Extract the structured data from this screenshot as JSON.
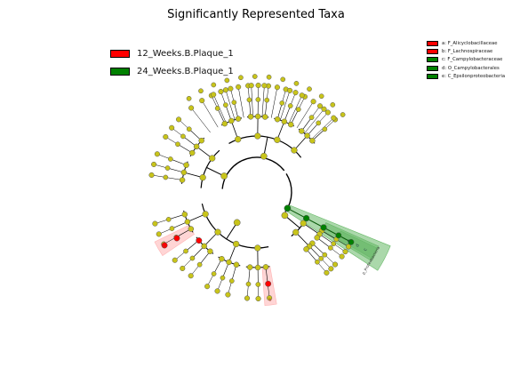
{
  "title": "Significantly Represented Taxa",
  "colors": {
    "class_12wk": "#ff0000",
    "class_24wk": "#008000",
    "node_default": "#c8c41a",
    "highlight_red": "#ffb3b3",
    "highlight_green": "#66b866"
  },
  "class_legend": [
    {
      "label": "12_Weeks.B.Plaque_1",
      "color": "#ff0000"
    },
    {
      "label": "24_Weeks.B.Plaque_1",
      "color": "#008000"
    }
  ],
  "taxa_legend": [
    {
      "label": "a: F_Alicyclobacillaceae",
      "color": "#ff0000"
    },
    {
      "label": "b: F_Lachnospiraceae",
      "color": "#ff0000"
    },
    {
      "label": "c: F_Campylobacteraceae",
      "color": "#008000"
    },
    {
      "label": "d: O_Campylobacterales",
      "color": "#008000"
    },
    {
      "label": "e: C_Epsilonproteobacteria",
      "color": "#008000"
    }
  ],
  "cladogram": {
    "phylum_labels": [
      {
        "text": "p_Proteobacteria"
      }
    ],
    "clade_letters": [
      {
        "letter": "a"
      },
      {
        "letter": "b"
      },
      {
        "letter": "c"
      },
      {
        "letter": "d"
      },
      {
        "letter": "e"
      }
    ]
  }
}
